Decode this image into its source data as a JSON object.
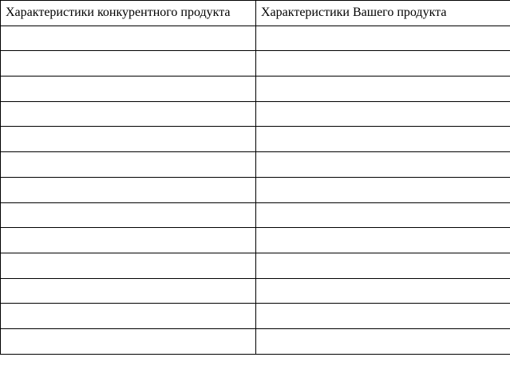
{
  "table": {
    "headers": [
      "Характеристики конкурентного продукта",
      "Характеристики Вашего продукта"
    ],
    "rows": [
      [
        "",
        ""
      ],
      [
        "",
        ""
      ],
      [
        "",
        ""
      ],
      [
        "",
        ""
      ],
      [
        "",
        ""
      ],
      [
        "",
        ""
      ],
      [
        "",
        ""
      ],
      [
        "",
        ""
      ],
      [
        "",
        ""
      ],
      [
        "",
        ""
      ],
      [
        "",
        ""
      ],
      [
        "",
        ""
      ],
      [
        "",
        ""
      ]
    ]
  }
}
